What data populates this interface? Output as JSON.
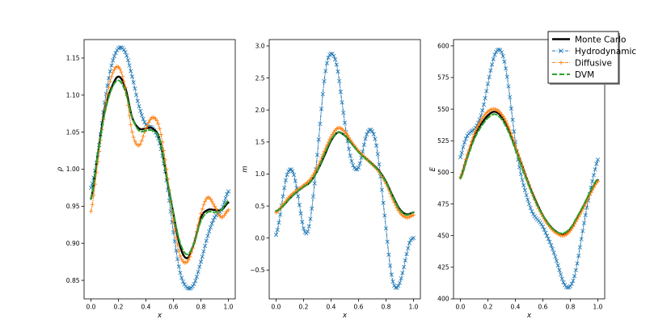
{
  "colors": {
    "monte_carlo": "#000000",
    "hydrodynamic": "#1f77b4",
    "diffusive": "#ff7f0e",
    "dvm": "#2ca02c"
  },
  "legend": {
    "items": [
      {
        "key": "monte_carlo",
        "label": "Monte Carlo",
        "style": "solid-thick"
      },
      {
        "key": "hydrodynamic",
        "label": "Hydrodynamic",
        "style": "dashdot-x"
      },
      {
        "key": "diffusive",
        "label": "Diffusive",
        "style": "dashdot-plus"
      },
      {
        "key": "dvm",
        "label": "DVM",
        "style": "dashed-thick"
      }
    ]
  },
  "chart_data": [
    {
      "type": "line",
      "xlabel": "x",
      "ylabel": "ρ",
      "xlim": [
        -0.05,
        1.05
      ],
      "ylim": [
        0.825,
        1.175
      ],
      "xticks": [
        0.0,
        0.2,
        0.4,
        0.6,
        0.8,
        1.0
      ],
      "xtick_labels": [
        "0.0",
        "0.2",
        "0.4",
        "0.6",
        "0.8",
        "1.0"
      ],
      "yticks": [
        0.85,
        0.9,
        0.95,
        1.0,
        1.05,
        1.1,
        1.15
      ],
      "ytick_labels": [
        "0.85",
        "0.90",
        "0.95",
        "1.00",
        "1.05",
        "1.10",
        "1.15"
      ],
      "series": [
        {
          "name": "Monte Carlo",
          "key": "monte_carlo",
          "x": [
            0,
            0.05,
            0.1,
            0.15,
            0.2,
            0.25,
            0.3,
            0.35,
            0.4,
            0.45,
            0.5,
            0.55,
            0.6,
            0.65,
            0.7,
            0.75,
            0.8,
            0.85,
            0.9,
            0.95,
            1.0
          ],
          "y": [
            0.96,
            1.02,
            1.08,
            1.11,
            1.125,
            1.11,
            1.07,
            1.055,
            1.055,
            1.055,
            1.04,
            0.99,
            0.94,
            0.895,
            0.88,
            0.9,
            0.935,
            0.945,
            0.945,
            0.945,
            0.955
          ]
        },
        {
          "name": "Hydrodynamic",
          "key": "hydrodynamic",
          "x": [
            0,
            0.05,
            0.1,
            0.15,
            0.2,
            0.25,
            0.3,
            0.35,
            0.4,
            0.45,
            0.5,
            0.55,
            0.6,
            0.65,
            0.7,
            0.75,
            0.8,
            0.85,
            0.9,
            0.95,
            1.0
          ],
          "y": [
            0.975,
            1.02,
            1.09,
            1.14,
            1.163,
            1.158,
            1.125,
            1.085,
            1.06,
            1.055,
            1.035,
            0.985,
            0.915,
            0.86,
            0.84,
            0.845,
            0.875,
            0.91,
            0.935,
            0.945,
            0.97
          ]
        },
        {
          "name": "Diffusive",
          "key": "diffusive",
          "x": [
            0,
            0.05,
            0.1,
            0.15,
            0.2,
            0.25,
            0.3,
            0.35,
            0.4,
            0.45,
            0.5,
            0.55,
            0.6,
            0.65,
            0.7,
            0.75,
            0.8,
            0.85,
            0.9,
            0.95,
            1.0
          ],
          "y": [
            0.943,
            1.01,
            1.08,
            1.125,
            1.138,
            1.11,
            1.05,
            1.032,
            1.055,
            1.07,
            1.055,
            1.0,
            0.93,
            0.883,
            0.875,
            0.9,
            0.94,
            0.962,
            0.95,
            0.935,
            0.945
          ]
        },
        {
          "name": "DVM",
          "key": "dvm",
          "x": [
            0,
            0.05,
            0.1,
            0.15,
            0.2,
            0.25,
            0.3,
            0.35,
            0.4,
            0.45,
            0.5,
            0.55,
            0.6,
            0.65,
            0.7,
            0.75,
            0.8,
            0.85,
            0.9,
            0.95,
            1.0
          ],
          "y": [
            0.96,
            1.02,
            1.075,
            1.108,
            1.12,
            1.105,
            1.07,
            1.052,
            1.052,
            1.052,
            1.04,
            0.99,
            0.94,
            0.9,
            0.885,
            0.9,
            0.93,
            0.942,
            0.942,
            0.945,
            0.958
          ]
        }
      ]
    },
    {
      "type": "line",
      "xlabel": "x",
      "ylabel": "m",
      "xlim": [
        -0.05,
        1.05
      ],
      "ylim": [
        -0.95,
        3.1
      ],
      "xticks": [
        0.0,
        0.2,
        0.4,
        0.6,
        0.8,
        1.0
      ],
      "xtick_labels": [
        "0.0",
        "0.2",
        "0.4",
        "0.6",
        "0.8",
        "1.0"
      ],
      "yticks": [
        -0.5,
        0.0,
        0.5,
        1.0,
        1.5,
        2.0,
        2.5,
        3.0
      ],
      "ytick_labels": [
        "−0.5",
        "0.0",
        "0.5",
        "1.0",
        "1.5",
        "2.0",
        "2.5",
        "3.0"
      ],
      "series": [
        {
          "name": "Monte Carlo",
          "key": "monte_carlo",
          "x": [
            0,
            0.05,
            0.1,
            0.15,
            0.2,
            0.25,
            0.3,
            0.35,
            0.4,
            0.45,
            0.5,
            0.55,
            0.6,
            0.65,
            0.7,
            0.75,
            0.8,
            0.85,
            0.9,
            0.95,
            1.0
          ],
          "y": [
            0.42,
            0.5,
            0.62,
            0.72,
            0.8,
            0.88,
            1.05,
            1.28,
            1.52,
            1.65,
            1.6,
            1.48,
            1.35,
            1.25,
            1.16,
            1.05,
            0.88,
            0.65,
            0.45,
            0.37,
            0.4
          ]
        },
        {
          "name": "Hydrodynamic",
          "key": "hydrodynamic",
          "x": [
            0,
            0.025,
            0.05,
            0.075,
            0.1,
            0.125,
            0.15,
            0.175,
            0.2,
            0.225,
            0.25,
            0.275,
            0.3,
            0.325,
            0.35,
            0.375,
            0.4,
            0.425,
            0.45,
            0.475,
            0.5,
            0.525,
            0.55,
            0.575,
            0.6,
            0.625,
            0.65,
            0.675,
            0.7,
            0.725,
            0.75,
            0.775,
            0.8,
            0.825,
            0.85,
            0.875,
            0.9,
            0.925,
            0.95,
            0.975,
            1.0
          ],
          "y": [
            0.05,
            0.3,
            0.65,
            0.95,
            1.07,
            1.02,
            0.78,
            0.45,
            0.15,
            0.08,
            0.3,
            0.75,
            1.3,
            1.9,
            2.45,
            2.78,
            2.88,
            2.82,
            2.6,
            2.2,
            1.8,
            1.45,
            1.2,
            1.08,
            1.1,
            1.3,
            1.55,
            1.68,
            1.67,
            1.5,
            1.15,
            0.65,
            0.15,
            -0.35,
            -0.68,
            -0.78,
            -0.7,
            -0.5,
            -0.25,
            -0.05,
            0.0
          ]
        },
        {
          "name": "Diffusive",
          "key": "diffusive",
          "x": [
            0,
            0.05,
            0.1,
            0.15,
            0.2,
            0.25,
            0.3,
            0.35,
            0.4,
            0.45,
            0.5,
            0.55,
            0.6,
            0.65,
            0.7,
            0.75,
            0.8,
            0.85,
            0.9,
            0.95,
            1.0
          ],
          "y": [
            0.4,
            0.52,
            0.65,
            0.74,
            0.82,
            0.92,
            1.1,
            1.35,
            1.58,
            1.72,
            1.66,
            1.5,
            1.36,
            1.25,
            1.15,
            1.03,
            0.85,
            0.6,
            0.4,
            0.32,
            0.36
          ]
        },
        {
          "name": "DVM",
          "key": "dvm",
          "x": [
            0,
            0.05,
            0.1,
            0.15,
            0.2,
            0.25,
            0.3,
            0.35,
            0.4,
            0.45,
            0.5,
            0.55,
            0.6,
            0.65,
            0.7,
            0.75,
            0.8,
            0.85,
            0.9,
            0.95,
            1.0
          ],
          "y": [
            0.42,
            0.5,
            0.62,
            0.72,
            0.8,
            0.88,
            1.05,
            1.3,
            1.53,
            1.65,
            1.6,
            1.47,
            1.34,
            1.24,
            1.15,
            1.04,
            0.87,
            0.64,
            0.44,
            0.36,
            0.4
          ]
        }
      ]
    },
    {
      "type": "line",
      "xlabel": "x",
      "ylabel": "E",
      "xlim": [
        -0.05,
        1.05
      ],
      "ylim": [
        400,
        605
      ],
      "xticks": [
        0.0,
        0.2,
        0.4,
        0.6,
        0.8,
        1.0
      ],
      "xtick_labels": [
        "0.0",
        "0.2",
        "0.4",
        "0.6",
        "0.8",
        "1.0"
      ],
      "yticks": [
        400,
        425,
        450,
        475,
        500,
        525,
        550,
        575,
        600
      ],
      "ytick_labels": [
        "400",
        "425",
        "450",
        "475",
        "500",
        "525",
        "550",
        "575",
        "600"
      ],
      "series": [
        {
          "name": "Monte Carlo",
          "key": "monte_carlo",
          "x": [
            0,
            0.05,
            0.1,
            0.15,
            0.2,
            0.25,
            0.3,
            0.35,
            0.4,
            0.45,
            0.5,
            0.55,
            0.6,
            0.65,
            0.7,
            0.75,
            0.8,
            0.85,
            0.9,
            0.95,
            1.0
          ],
          "y": [
            496,
            513,
            528,
            538,
            545,
            548,
            544,
            534,
            520,
            505,
            490,
            477,
            466,
            458,
            453,
            451,
            455,
            464,
            474,
            485,
            494
          ]
        },
        {
          "name": "Hydrodynamic",
          "key": "hydrodynamic",
          "x": [
            0,
            0.025,
            0.05,
            0.075,
            0.1,
            0.125,
            0.15,
            0.175,
            0.2,
            0.225,
            0.25,
            0.275,
            0.3,
            0.325,
            0.35,
            0.375,
            0.4,
            0.425,
            0.45,
            0.475,
            0.5,
            0.525,
            0.55,
            0.575,
            0.6,
            0.625,
            0.65,
            0.675,
            0.7,
            0.725,
            0.75,
            0.775,
            0.8,
            0.825,
            0.85,
            0.875,
            0.9,
            0.925,
            0.95,
            0.975,
            1.0
          ],
          "y": [
            512,
            522,
            529,
            532,
            534,
            538,
            545,
            556,
            570,
            583,
            593,
            597,
            595,
            585,
            568,
            546,
            524,
            507,
            494,
            484,
            475,
            468,
            464,
            461,
            457,
            451,
            445,
            438,
            430,
            421,
            413,
            409,
            410,
            416,
            428,
            444,
            460,
            475,
            488,
            500,
            510
          ]
        },
        {
          "name": "Diffusive",
          "key": "diffusive",
          "x": [
            0,
            0.05,
            0.1,
            0.15,
            0.2,
            0.25,
            0.3,
            0.35,
            0.4,
            0.45,
            0.5,
            0.55,
            0.6,
            0.65,
            0.7,
            0.75,
            0.8,
            0.85,
            0.9,
            0.95,
            1.0
          ],
          "y": [
            496,
            514,
            530,
            541,
            548,
            550,
            546,
            536,
            521,
            505,
            490,
            476,
            465,
            457,
            452,
            450,
            454,
            463,
            473,
            484,
            493
          ]
        },
        {
          "name": "DVM",
          "key": "dvm",
          "x": [
            0,
            0.05,
            0.1,
            0.15,
            0.2,
            0.25,
            0.3,
            0.35,
            0.4,
            0.45,
            0.5,
            0.55,
            0.6,
            0.65,
            0.7,
            0.75,
            0.8,
            0.85,
            0.9,
            0.95,
            1.0
          ],
          "y": [
            495,
            511,
            526,
            536,
            543,
            546,
            542,
            532,
            518,
            503,
            489,
            476,
            466,
            458,
            453,
            452,
            456,
            465,
            475,
            486,
            495
          ]
        }
      ]
    }
  ]
}
